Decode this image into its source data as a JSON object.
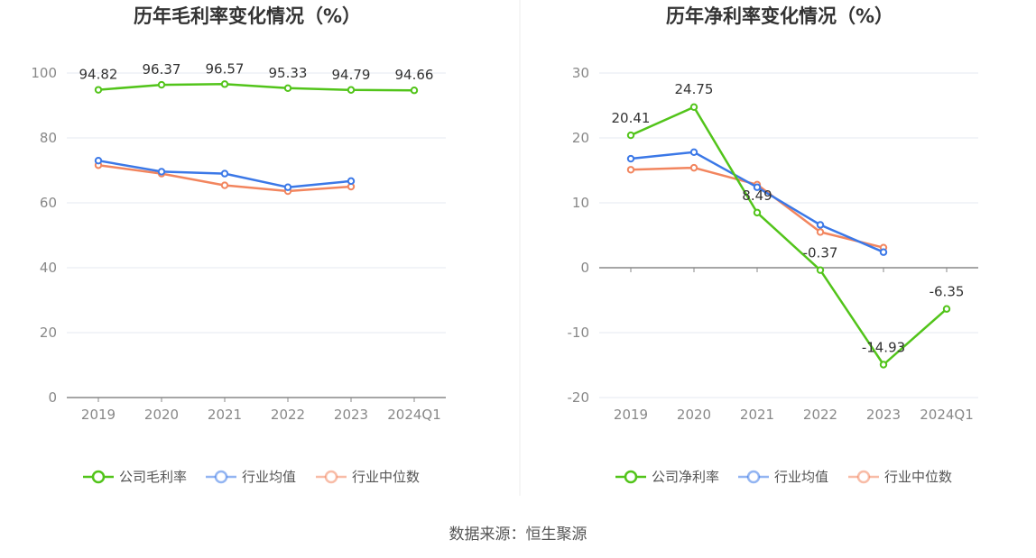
{
  "source_text": "数据来源：恒生聚源",
  "chart_data": [
    {
      "type": "line",
      "title": "历年毛利率变化情况（%）",
      "categories": [
        "2019",
        "2020",
        "2021",
        "2022",
        "2023",
        "2024Q1"
      ],
      "ylim": [
        0,
        100
      ],
      "yticks": [
        0,
        20,
        40,
        60,
        80,
        100
      ],
      "grid": true,
      "legend_position": "bottom",
      "series": [
        {
          "name": "公司毛利率",
          "color": "#52c41a",
          "values": [
            94.82,
            96.37,
            96.57,
            95.33,
            94.79,
            94.66
          ],
          "labels": [
            "94.82",
            "96.37",
            "96.57",
            "95.33",
            "94.79",
            "94.66"
          ]
        },
        {
          "name": "行业均值",
          "color": "#3b78e7",
          "values": [
            73.0,
            69.6,
            69.0,
            64.8,
            66.7,
            null
          ]
        },
        {
          "name": "行业中位数",
          "color": "#f2855e",
          "values": [
            71.6,
            69.0,
            65.4,
            63.6,
            65.0,
            null
          ]
        }
      ]
    },
    {
      "type": "line",
      "title": "历年净利率变化情况（%）",
      "categories": [
        "2019",
        "2020",
        "2021",
        "2022",
        "2023",
        "2024Q1"
      ],
      "ylim": [
        -20,
        30
      ],
      "yticks": [
        -20,
        -10,
        0,
        10,
        20,
        30
      ],
      "grid": true,
      "legend_position": "bottom",
      "series": [
        {
          "name": "公司净利率",
          "color": "#52c41a",
          "values": [
            20.41,
            24.75,
            8.49,
            -0.37,
            -14.93,
            -6.35
          ],
          "labels": [
            "20.41",
            "24.75",
            "8.49",
            "-0.37",
            "-14.93",
            "-6.35"
          ]
        },
        {
          "name": "行业均值",
          "color": "#3b78e7",
          "values": [
            16.8,
            17.8,
            12.4,
            6.6,
            2.4,
            null
          ]
        },
        {
          "name": "行业中位数",
          "color": "#f2855e",
          "values": [
            15.1,
            15.4,
            12.8,
            5.5,
            3.1,
            null
          ]
        }
      ]
    }
  ]
}
